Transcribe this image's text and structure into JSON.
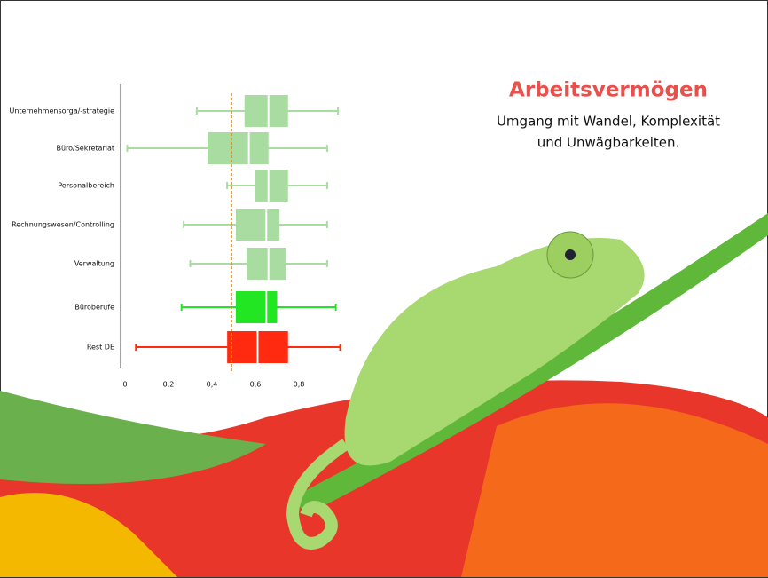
{
  "chart_data": {
    "type": "boxplot",
    "title": "Arbeitsvermögen",
    "subtitle": [
      "Umgang mit Wandel, Komplexität",
      "und Unwägbarkeiten."
    ],
    "categories": [
      "Unternehmensorga/-strategie",
      "Büro/Sekretariat",
      "Personalbereich",
      "Rechnungswesen/Controlling",
      "Verwaltung",
      "Büroberufe",
      "Rest DE"
    ],
    "stats": [
      {
        "min": 0.33,
        "q1": 0.55,
        "median": 0.66,
        "q3": 0.75,
        "max": 0.98
      },
      {
        "min": 0.01,
        "q1": 0.38,
        "median": 0.57,
        "q3": 0.66,
        "max": 0.93
      },
      {
        "min": 0.47,
        "q1": 0.6,
        "median": 0.66,
        "q3": 0.75,
        "max": 0.93
      },
      {
        "min": 0.27,
        "q1": 0.51,
        "median": 0.65,
        "q3": 0.71,
        "max": 0.93
      },
      {
        "min": 0.3,
        "q1": 0.56,
        "median": 0.66,
        "q3": 0.74,
        "max": 0.93
      },
      {
        "min": 0.26,
        "q1": 0.51,
        "median": 0.65,
        "q3": 0.7,
        "max": 0.97
      },
      {
        "min": 0.05,
        "q1": 0.47,
        "median": 0.61,
        "q3": 0.75,
        "max": 0.99
      }
    ],
    "colors": [
      "#a8dca0",
      "#a8dca0",
      "#a8dca0",
      "#a8dca0",
      "#a8dca0",
      "#22e622",
      "#ff2a10"
    ],
    "reference_line": 0.49,
    "reference_color": "#f08000",
    "xlim": [
      0,
      1
    ],
    "xticks": [
      0,
      {
        "value": 0.2,
        "label": "0,2"
      },
      {
        "value": 0.4,
        "label": "0,4"
      },
      {
        "value": 0.6,
        "label": "0,6"
      },
      {
        "value": 0.8,
        "label": "0,8"
      }
    ]
  }
}
